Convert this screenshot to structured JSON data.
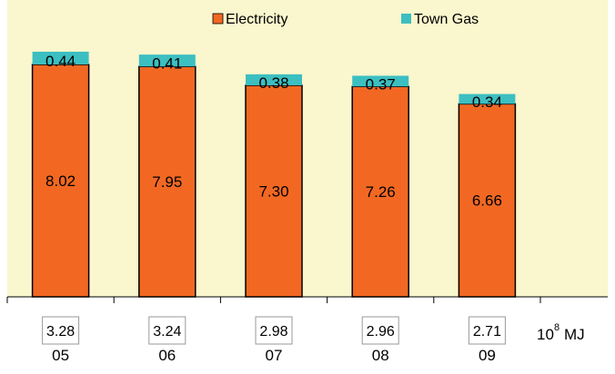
{
  "chart_data": {
    "type": "bar",
    "stacked": true,
    "categories": [
      "05",
      "06",
      "07",
      "08",
      "09"
    ],
    "series": [
      {
        "name": "Electricity",
        "values": [
          8.02,
          7.95,
          7.3,
          7.26,
          6.66
        ],
        "labels": [
          "8.02",
          "7.95",
          "7.30",
          "7.26",
          "6.66"
        ]
      },
      {
        "name": "Town Gas",
        "values": [
          0.44,
          0.41,
          0.38,
          0.37,
          0.34
        ],
        "labels": [
          "0.44",
          "0.41",
          "0.38",
          "0.37",
          "0.34"
        ]
      }
    ],
    "box_values": [
      "3.28",
      "3.24",
      "2.98",
      "2.96",
      "2.71"
    ],
    "unit_base": "10",
    "unit_exp": "8",
    "unit_suffix": "MJ",
    "ylim": [
      0,
      9
    ],
    "legend_position": "top"
  },
  "colors": {
    "plot_background": "#faf6cd",
    "electricity": "#f26822",
    "town_gas": "#3cbfc1",
    "border": "#000000",
    "box_border": "#999999"
  }
}
